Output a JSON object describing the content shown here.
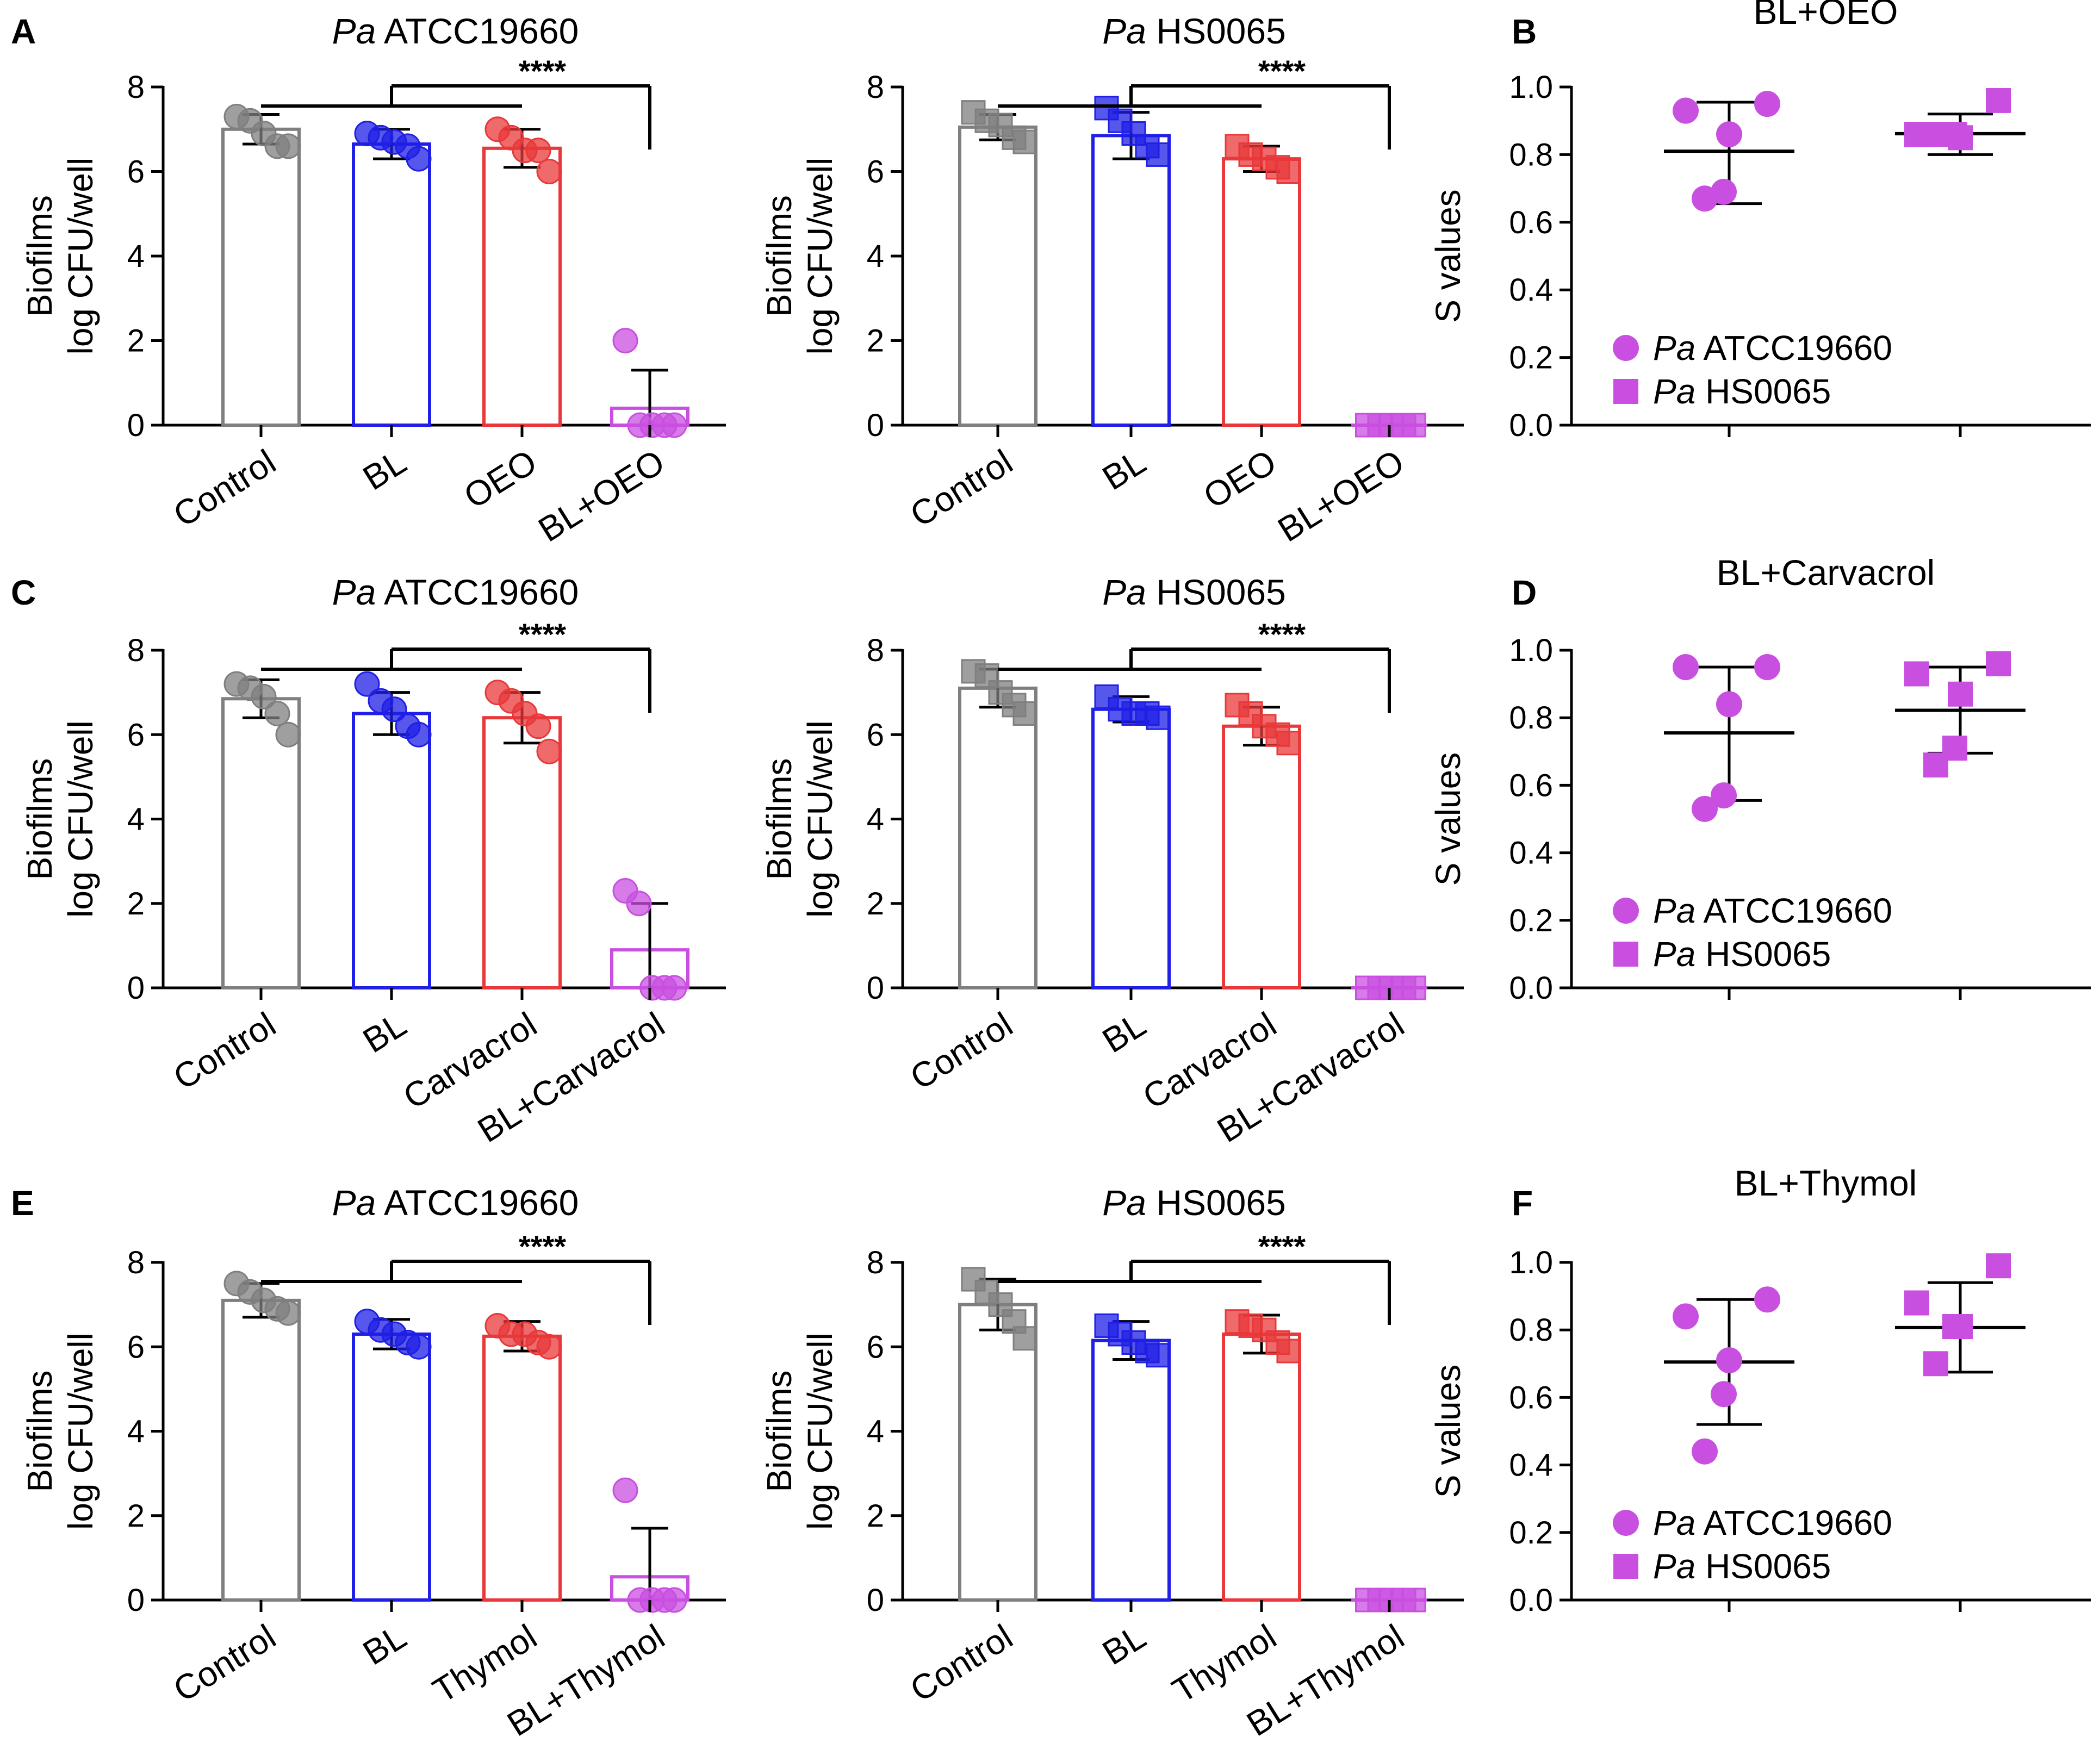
{
  "figure": {
    "colors": {
      "Control": "#7f7f7f",
      "BL": "#1f1fe6",
      "Treat": "#e8383a",
      "Combo": "#c84fe0",
      "axis": "#000000"
    }
  },
  "chart_data": [
    {
      "type": "bar",
      "panel": "A",
      "title_italic": "Pa",
      "title_rest": " ATCC19660",
      "ylabel": [
        "Biofilms",
        "log CFU/well"
      ],
      "ylim": [
        0,
        8
      ],
      "yticks": [
        0,
        2,
        4,
        6,
        8
      ],
      "categories": [
        "Control",
        "BL",
        "OEO",
        "BL+OEO"
      ],
      "marker": "circle",
      "values": [
        7.0,
        6.65,
        6.55,
        0.4
      ],
      "errors": [
        0.35,
        0.35,
        0.45,
        0.9
      ],
      "points": [
        [
          7.3,
          7.2,
          6.9,
          6.6,
          6.6
        ],
        [
          6.9,
          6.8,
          6.7,
          6.6,
          6.3
        ],
        [
          7.0,
          6.8,
          6.5,
          6.5,
          6.0
        ],
        [
          2.0,
          0,
          0,
          0,
          0
        ]
      ],
      "significance": "****"
    },
    {
      "type": "bar",
      "panel": "",
      "title_italic": "Pa",
      "title_rest": " HS0065",
      "ylabel": [
        "Biofilms",
        "log CFU/well"
      ],
      "ylim": [
        0,
        8
      ],
      "yticks": [
        0,
        2,
        4,
        6,
        8
      ],
      "categories": [
        "Control",
        "BL",
        "OEO",
        "BL+OEO"
      ],
      "marker": "square",
      "values": [
        7.05,
        6.85,
        6.3,
        0
      ],
      "errors": [
        0.3,
        0.55,
        0.3,
        0
      ],
      "points": [
        [
          7.4,
          7.2,
          7.1,
          6.8,
          6.7
        ],
        [
          7.5,
          7.2,
          6.9,
          6.6,
          6.4
        ],
        [
          6.6,
          6.4,
          6.3,
          6.1,
          6.0
        ],
        [
          0,
          0,
          0,
          0,
          0
        ]
      ],
      "significance": "****"
    },
    {
      "type": "scatter",
      "panel": "B",
      "title": "BL+OEO",
      "ylabel": "S values",
      "ylim": [
        0,
        1
      ],
      "yticks": [
        "0.0",
        "0.2",
        "0.4",
        "0.6",
        "0.8",
        "1.0"
      ],
      "series": [
        {
          "name_italic": "Pa",
          "name_rest": " ATCC19660",
          "marker": "circle",
          "mean": 0.81,
          "upper": 0.955,
          "lower": 0.655,
          "points": [
            0.95,
            0.93,
            0.86,
            0.69,
            0.67
          ]
        },
        {
          "name_italic": "Pa",
          "name_rest": " HS0065",
          "marker": "square",
          "mean": 0.862,
          "upper": 0.92,
          "lower": 0.8,
          "points": [
            0.96,
            0.86,
            0.85,
            0.86,
            0.86
          ]
        }
      ]
    },
    {
      "type": "bar",
      "panel": "C",
      "title_italic": "Pa",
      "title_rest": " ATCC19660",
      "ylabel": [
        "Biofilms",
        "log CFU/well"
      ],
      "ylim": [
        0,
        8
      ],
      "yticks": [
        0,
        2,
        4,
        6,
        8
      ],
      "categories": [
        "Control",
        "BL",
        "Carvacrol",
        "BL+Carvacrol"
      ],
      "marker": "circle",
      "values": [
        6.85,
        6.5,
        6.4,
        0.9
      ],
      "errors": [
        0.45,
        0.5,
        0.6,
        1.1
      ],
      "points": [
        [
          7.2,
          7.1,
          6.9,
          6.5,
          6.0
        ],
        [
          7.2,
          6.8,
          6.6,
          6.2,
          6.0
        ],
        [
          7.0,
          6.8,
          6.5,
          6.2,
          5.6
        ],
        [
          2.3,
          2.0,
          0,
          0,
          0
        ]
      ],
      "significance": "****"
    },
    {
      "type": "bar",
      "panel": "",
      "title_italic": "Pa",
      "title_rest": " HS0065",
      "ylabel": [
        "Biofilms",
        "log CFU/well"
      ],
      "ylim": [
        0,
        8
      ],
      "yticks": [
        0,
        2,
        4,
        6,
        8
      ],
      "categories": [
        "Control",
        "BL",
        "Carvacrol",
        "BL+Carvacrol"
      ],
      "marker": "square",
      "values": [
        7.1,
        6.6,
        6.2,
        0
      ],
      "errors": [
        0.45,
        0.3,
        0.45,
        0
      ],
      "points": [
        [
          7.5,
          7.4,
          7.0,
          6.7,
          6.5
        ],
        [
          6.9,
          6.6,
          6.5,
          6.5,
          6.4
        ],
        [
          6.7,
          6.5,
          6.2,
          6.0,
          5.8
        ],
        [
          0,
          0,
          0,
          0,
          0
        ]
      ],
      "significance": "****"
    },
    {
      "type": "scatter",
      "panel": "D",
      "title": "BL+Carvacrol",
      "ylabel": "S values",
      "ylim": [
        0,
        1
      ],
      "yticks": [
        "0.0",
        "0.2",
        "0.4",
        "0.6",
        "0.8",
        "1.0"
      ],
      "series": [
        {
          "name_italic": "Pa",
          "name_rest": " ATCC19660",
          "marker": "circle",
          "mean": 0.755,
          "upper": 0.95,
          "lower": 0.555,
          "points": [
            0.95,
            0.95,
            0.84,
            0.57,
            0.53
          ]
        },
        {
          "name_italic": "Pa",
          "name_rest": " HS0065",
          "marker": "square",
          "mean": 0.822,
          "upper": 0.95,
          "lower": 0.695,
          "points": [
            0.96,
            0.93,
            0.87,
            0.71,
            0.66
          ]
        }
      ]
    },
    {
      "type": "bar",
      "panel": "E",
      "title_italic": "Pa",
      "title_rest": " ATCC19660",
      "ylabel": [
        "Biofilms",
        "log CFU/well"
      ],
      "ylim": [
        0,
        8
      ],
      "yticks": [
        0,
        2,
        4,
        6,
        8
      ],
      "categories": [
        "Control",
        "BL",
        "Thymol",
        "BL+Thymol"
      ],
      "marker": "circle",
      "values": [
        7.1,
        6.3,
        6.25,
        0.55
      ],
      "errors": [
        0.4,
        0.35,
        0.35,
        1.15
      ],
      "points": [
        [
          7.5,
          7.3,
          7.1,
          6.9,
          6.8
        ],
        [
          6.6,
          6.4,
          6.3,
          6.1,
          6.0
        ],
        [
          6.5,
          6.3,
          6.3,
          6.1,
          6.0
        ],
        [
          2.6,
          0,
          0,
          0,
          0
        ]
      ],
      "significance": "****"
    },
    {
      "type": "bar",
      "panel": "",
      "title_italic": "Pa",
      "title_rest": " HS0065",
      "ylabel": [
        "Biofilms",
        "log CFU/well"
      ],
      "ylim": [
        0,
        8
      ],
      "yticks": [
        0,
        2,
        4,
        6,
        8
      ],
      "categories": [
        "Control",
        "BL",
        "Thymol",
        "BL+Thymol"
      ],
      "marker": "square",
      "values": [
        7.0,
        6.15,
        6.3,
        0
      ],
      "errors": [
        0.6,
        0.45,
        0.45,
        0
      ],
      "points": [
        [
          7.6,
          7.3,
          7.0,
          6.6,
          6.2
        ],
        [
          6.5,
          6.3,
          6.1,
          5.9,
          5.8
        ],
        [
          6.6,
          6.5,
          6.4,
          6.1,
          5.9
        ],
        [
          0,
          0,
          0,
          0,
          0
        ]
      ],
      "significance": "****"
    },
    {
      "type": "scatter",
      "panel": "F",
      "title": "BL+Thymol",
      "ylabel": "S values",
      "ylim": [
        0,
        1
      ],
      "yticks": [
        "0.0",
        "0.2",
        "0.4",
        "0.6",
        "0.8",
        "1.0"
      ],
      "series": [
        {
          "name_italic": "Pa",
          "name_rest": " ATCC19660",
          "marker": "circle",
          "mean": 0.705,
          "upper": 0.89,
          "lower": 0.52,
          "points": [
            0.89,
            0.84,
            0.71,
            0.61,
            0.44
          ]
        },
        {
          "name_italic": "Pa",
          "name_rest": " HS0065",
          "marker": "square",
          "mean": 0.807,
          "upper": 0.94,
          "lower": 0.675,
          "points": [
            0.99,
            0.88,
            0.81,
            0.81,
            0.7
          ]
        }
      ]
    }
  ]
}
